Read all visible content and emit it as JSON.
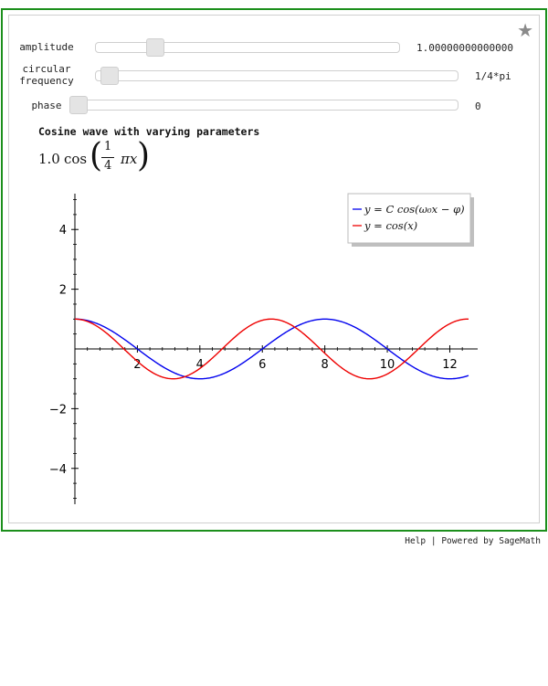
{
  "controls": {
    "amplitude": {
      "label": "amplitude",
      "value_text": "1.00000000000000",
      "position": 0.2
    },
    "frequency": {
      "label_line1": "circular",
      "label_line2": "frequency",
      "value_text": "1/4*pi",
      "position": 0.0
    },
    "phase": {
      "label": "phase",
      "value_text": "0",
      "position": 0.0
    }
  },
  "output": {
    "caption": "Cosine wave with varying parameters",
    "formula": {
      "coefficient": "1.0",
      "func": "cos",
      "numerator": "1",
      "denominator": "4",
      "tail": "πx"
    }
  },
  "chart_data": {
    "type": "line",
    "xlim": [
      0,
      12.6
    ],
    "ylim": [
      -5.2,
      5.2
    ],
    "x_ticks": [
      2,
      4,
      6,
      8,
      10,
      12
    ],
    "y_ticks": [
      -4,
      -2,
      2,
      4
    ],
    "series": [
      {
        "name": "y = C cos(ω₀x − φ)",
        "function": "cos(pi/4 * x)",
        "color": "#0000ee",
        "amplitude": 1.0,
        "omega": 0.7853981634,
        "phase": 0
      },
      {
        "name": "y = cos(x)",
        "function": "cos(x)",
        "color": "#ee0000",
        "amplitude": 1.0,
        "omega": 1.0,
        "phase": 0
      }
    ],
    "legend_position": "top-right"
  },
  "footer": {
    "help": "Help",
    "separator": "|",
    "powered": "Powered by SageMath"
  }
}
